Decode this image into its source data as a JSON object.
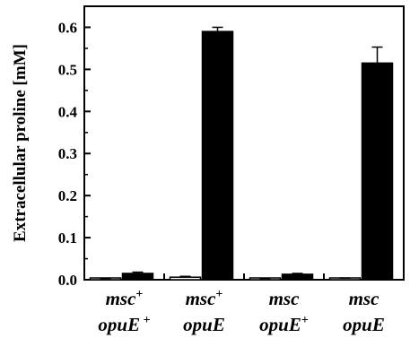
{
  "chart_data": {
    "type": "bar",
    "ylabel": "Extracellular proline [mM]",
    "ylim": [
      0,
      0.65
    ],
    "yticks": [
      "0.0",
      "0.1",
      "0.2",
      "0.3",
      "0.4",
      "0.5",
      "0.6"
    ],
    "categories": [
      {
        "line1": "msc",
        "line1_sup": "+",
        "line2": "opuE",
        "line2_sup": " +"
      },
      {
        "line1": "msc",
        "line1_sup": "+",
        "line2": "opuE",
        "line2_sup": ""
      },
      {
        "line1": "msc",
        "line1_sup": "",
        "line2": "opuE",
        "line2_sup": "+"
      },
      {
        "line1": "msc",
        "line1_sup": "",
        "line2": "opuE",
        "line2_sup": ""
      }
    ],
    "series": [
      {
        "values": [
          0.002,
          0.006,
          0.002,
          0.003
        ],
        "errors": [
          0.001,
          0.002,
          0.001,
          0.001
        ],
        "color": "#ffffff"
      },
      {
        "values": [
          0.015,
          0.59,
          0.013,
          0.515
        ],
        "errors": [
          0.003,
          0.01,
          0.002,
          0.038
        ],
        "color": "#000000"
      }
    ]
  }
}
